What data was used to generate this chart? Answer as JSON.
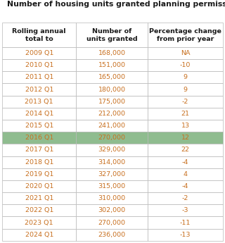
{
  "title": "Number of housing units granted planning permission",
  "col_headers": [
    "Rolling annual\ntotal to",
    "Number of\nunits granted",
    "Percentage change\nfrom prior year"
  ],
  "rows": [
    [
      "2009 Q1",
      "168,000",
      "NA"
    ],
    [
      "2010 Q1",
      "151,000",
      "-10"
    ],
    [
      "2011 Q1",
      "165,000",
      "9"
    ],
    [
      "2012 Q1",
      "180,000",
      "9"
    ],
    [
      "2013 Q1",
      "175,000",
      "-2"
    ],
    [
      "2014 Q1",
      "212,000",
      "21"
    ],
    [
      "2015 Q1",
      "241,000",
      "13"
    ],
    [
      "2016 Q1",
      "270,000",
      "12"
    ],
    [
      "2017 Q1",
      "329,000",
      "22"
    ],
    [
      "2018 Q1",
      "314,000",
      "-4"
    ],
    [
      "2019 Q1",
      "327,000",
      "4"
    ],
    [
      "2020 Q1",
      "315,000",
      "-4"
    ],
    [
      "2021 Q1",
      "310,000",
      "-2"
    ],
    [
      "2022 Q1",
      "302,000",
      "-3"
    ],
    [
      "2023 Q1",
      "270,000",
      "-11"
    ],
    [
      "2024 Q1",
      "236,000",
      "-13"
    ]
  ],
  "highlight_row_idx": 7,
  "highlight_color": "#8fbc8f",
  "normal_bg": "#ffffff",
  "border_color": "#b8b8b8",
  "title_color": "#1a1a1a",
  "text_color": "#c87020",
  "header_text_color": "#1a1a1a",
  "title_fontsize": 7.8,
  "header_fontsize": 6.8,
  "cell_fontsize": 6.8,
  "fig_width": 3.2,
  "fig_height": 3.45,
  "dpi": 100
}
